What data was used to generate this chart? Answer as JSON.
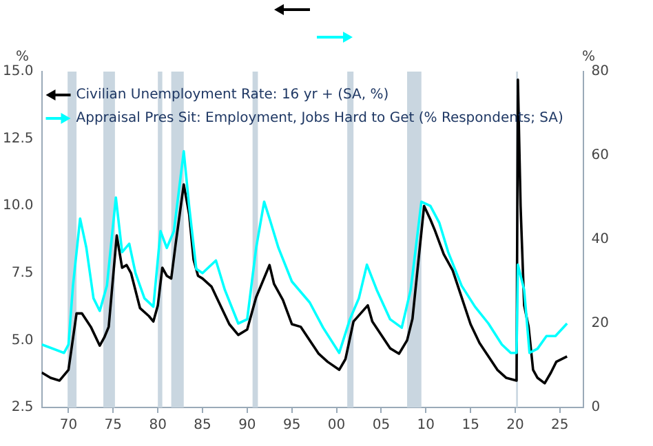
{
  "chart_data": {
    "type": "line",
    "ylabel": "%",
    "y2label": "%",
    "legend": "top left",
    "grid": false,
    "marker": "none",
    "line_style": "solid",
    "xlim": [
      1967,
      2027.6
    ],
    "xticks": [
      {
        "value": 1970,
        "label": "70"
      },
      {
        "value": 1975,
        "label": "75"
      },
      {
        "value": 1980,
        "label": "80"
      },
      {
        "value": 1985,
        "label": "85"
      },
      {
        "value": 1990,
        "label": "90"
      },
      {
        "value": 1995,
        "label": "95"
      },
      {
        "value": 2000,
        "label": "00"
      },
      {
        "value": 2005,
        "label": "05"
      },
      {
        "value": 2010,
        "label": "10"
      },
      {
        "value": 2015,
        "label": "15"
      },
      {
        "value": 2020,
        "label": "20"
      },
      {
        "value": 2025,
        "label": "25"
      }
    ],
    "ylim": [
      2.5,
      15
    ],
    "yticks": [
      {
        "value": 2.5,
        "label": "2.5"
      },
      {
        "value": 5,
        "label": "5.0"
      },
      {
        "value": 7.5,
        "label": "7.5"
      },
      {
        "value": 10,
        "label": "10.0"
      },
      {
        "value": 12.5,
        "label": "12.5"
      },
      {
        "value": 15,
        "label": "15.0"
      }
    ],
    "y2lim": [
      0,
      80
    ],
    "y2ticks": [
      0,
      20,
      40,
      60,
      80
    ],
    "bands": [
      {
        "axis": "x",
        "from": 1969.9,
        "to": 1970.9,
        "color": "#c9d6e0"
      },
      {
        "axis": "x",
        "from": 1973.9,
        "to": 1975.2,
        "color": "#c9d6e0"
      },
      {
        "axis": "x",
        "from": 1980.0,
        "to": 1980.5,
        "color": "#c9d6e0"
      },
      {
        "axis": "x",
        "from": 1981.5,
        "to": 1982.9,
        "color": "#c9d6e0"
      },
      {
        "axis": "x",
        "from": 1990.6,
        "to": 1991.2,
        "color": "#c9d6e0"
      },
      {
        "axis": "x",
        "from": 2001.2,
        "to": 2001.9,
        "color": "#c9d6e0"
      },
      {
        "axis": "x",
        "from": 2007.9,
        "to": 2009.5,
        "color": "#c9d6e0"
      },
      {
        "axis": "x",
        "from": 2020.1,
        "to": 2020.3,
        "color": "#c9d6e0"
      }
    ],
    "series": [
      {
        "name": "Appraisal Pres Sit: Employment, Jobs Hard to Get (% Respondents; SA)",
        "color": "#00ffff",
        "axis": "y2",
        "x": [
          1967,
          1969.5,
          1970,
          1970.5,
          1971.3,
          1972,
          1972.8,
          1973.5,
          1974.3,
          1975.3,
          1976,
          1976.8,
          1977.5,
          1978.5,
          1979.5,
          1980.3,
          1981,
          1981.8,
          1982.9,
          1983.5,
          1984.3,
          1985,
          1986.5,
          1987.5,
          1989,
          1990,
          1991,
          1991.9,
          1992.5,
          1993.5,
          1995,
          1997,
          1998.5,
          2000.3,
          2001.5,
          2002.5,
          2003.4,
          2004.5,
          2006,
          2007.3,
          2008.3,
          2009.5,
          2010.5,
          2011.5,
          2012.5,
          2014,
          2015.5,
          2017,
          2018.5,
          2019.5,
          2020.15,
          2020.3,
          2021,
          2021.6,
          2022.5,
          2023.5,
          2024.5,
          2025.8
        ],
        "values": [
          15,
          13,
          15,
          29,
          45,
          38,
          26,
          23,
          29,
          50,
          37,
          39,
          32,
          26,
          24,
          42,
          38,
          42,
          61,
          48,
          33,
          32,
          35,
          28,
          20,
          21,
          38,
          49,
          45,
          38,
          30,
          25,
          19,
          13,
          21,
          26,
          34,
          28,
          21,
          19,
          28,
          49,
          48,
          44,
          37,
          29,
          24,
          20,
          15,
          13,
          13,
          34,
          28,
          13,
          14,
          17,
          17,
          20
        ]
      },
      {
        "name": "Civilian Unemployment Rate: 16 yr + (SA, %)",
        "color": "#000000",
        "x": [
          1967,
          1968,
          1969,
          1970,
          1970.9,
          1971.5,
          1972.5,
          1973.5,
          1974,
          1974.5,
          1975.4,
          1976,
          1976.5,
          1977,
          1978,
          1979,
          1979.5,
          1980,
          1980.5,
          1981,
          1981.5,
          1982,
          1982.9,
          1983.5,
          1984,
          1984.5,
          1985,
          1986,
          1987,
          1988,
          1989,
          1990,
          1991,
          1992.5,
          1993,
          1994,
          1995,
          1996,
          1997,
          1998,
          1999,
          2000.3,
          2001,
          2001.9,
          2003.5,
          2004,
          2005,
          2006,
          2007,
          2007.9,
          2008.5,
          2009.8,
          2010.5,
          2011,
          2012,
          2013,
          2014,
          2015,
          2016,
          2017,
          2018,
          2019,
          2020.15,
          2020.3,
          2020.6,
          2021,
          2021.5,
          2022,
          2022.5,
          2023.3,
          2024,
          2024.6,
          2025.8
        ],
        "values": [
          3.8,
          3.6,
          3.5,
          3.9,
          6.0,
          6.0,
          5.5,
          4.8,
          5.1,
          5.5,
          8.9,
          7.7,
          7.8,
          7.5,
          6.2,
          5.9,
          5.7,
          6.3,
          7.7,
          7.4,
          7.3,
          8.6,
          10.8,
          9.7,
          8.0,
          7.4,
          7.3,
          7.0,
          6.3,
          5.6,
          5.2,
          5.4,
          6.6,
          7.8,
          7.1,
          6.5,
          5.6,
          5.5,
          5.0,
          4.5,
          4.2,
          3.9,
          4.3,
          5.7,
          6.3,
          5.7,
          5.2,
          4.7,
          4.5,
          5.0,
          5.8,
          10.0,
          9.5,
          9.1,
          8.2,
          7.6,
          6.6,
          5.6,
          4.9,
          4.4,
          3.9,
          3.6,
          3.5,
          14.7,
          10.0,
          6.3,
          5.5,
          3.9,
          3.6,
          3.4,
          3.8,
          4.2,
          4.4
        ]
      }
    ]
  }
}
